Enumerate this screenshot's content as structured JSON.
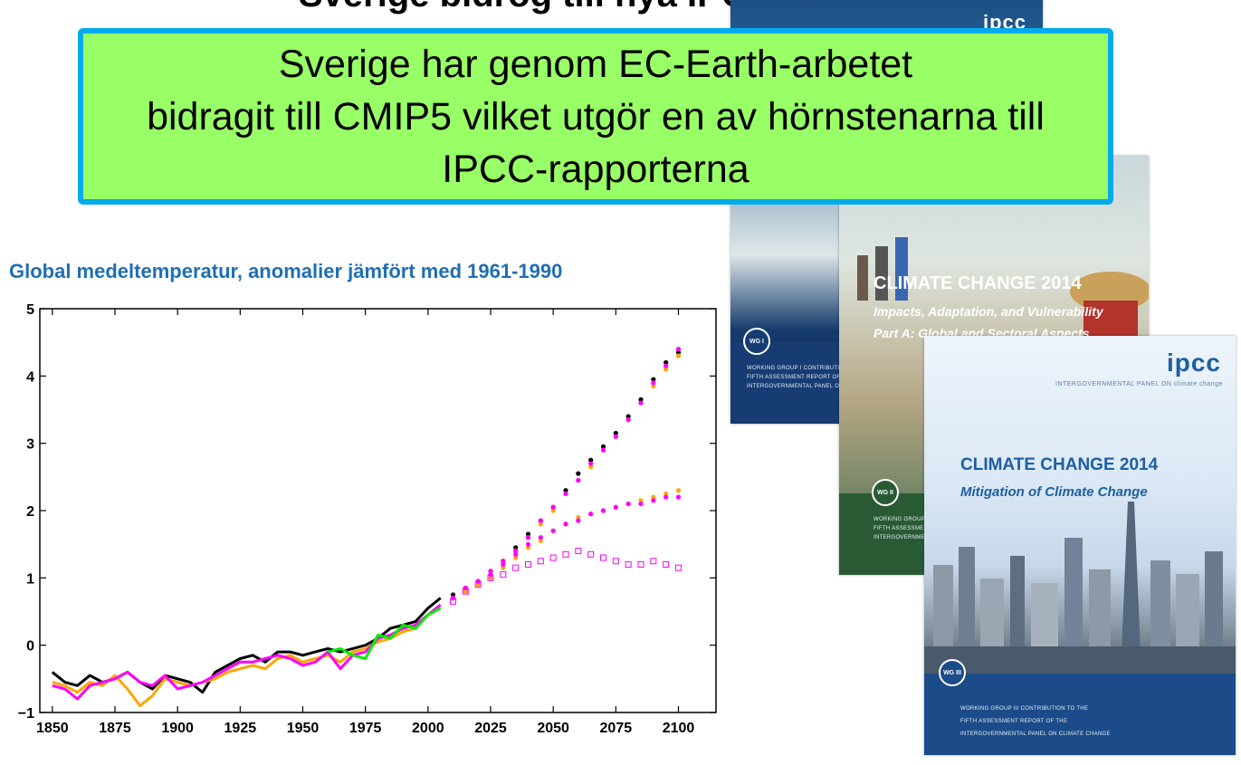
{
  "slide": {
    "top_title": "Sverige bidrog till nya IPCC-rapporten",
    "callout_lines": [
      "Sverige har genom EC-Earth-arbetet",
      "bidragit till CMIP5 vilket utgör en av hörnstenarna till",
      "IPCC-rapporterna"
    ]
  },
  "chart_data": {
    "type": "scatter",
    "title": "Global medeltemperatur, anomalier jämfört med 1961-1990",
    "xlabel": "",
    "ylabel": "",
    "xlim": [
      1845,
      2115
    ],
    "ylim": [
      -1,
      5
    ],
    "xticks": [
      1850,
      1875,
      1900,
      1925,
      1950,
      1975,
      2000,
      2025,
      2050,
      2075,
      2100
    ],
    "yticks": [
      -1,
      0,
      1,
      2,
      3,
      4,
      5
    ],
    "grid": false,
    "legend": "none",
    "series": [
      {
        "kind": "line",
        "color": "#000000",
        "x": [
          1850,
          1855,
          1860,
          1865,
          1870,
          1875,
          1880,
          1885,
          1890,
          1895,
          1900,
          1905,
          1910,
          1915,
          1920,
          1925,
          1930,
          1935,
          1940,
          1945,
          1950,
          1955,
          1960,
          1965,
          1970,
          1975,
          1980,
          1985,
          1990,
          1995,
          2000,
          2005
        ],
        "y": [
          -0.4,
          -0.55,
          -0.6,
          -0.45,
          -0.55,
          -0.5,
          -0.4,
          -0.55,
          -0.65,
          -0.45,
          -0.5,
          -0.55,
          -0.7,
          -0.4,
          -0.3,
          -0.2,
          -0.15,
          -0.25,
          -0.1,
          -0.1,
          -0.15,
          -0.1,
          -0.05,
          -0.1,
          -0.05,
          0.0,
          0.1,
          0.25,
          0.3,
          0.35,
          0.55,
          0.7
        ]
      },
      {
        "kind": "line",
        "color": "#ffa500",
        "x": [
          1850,
          1855,
          1860,
          1865,
          1870,
          1875,
          1880,
          1885,
          1890,
          1895,
          1900,
          1905,
          1910,
          1915,
          1920,
          1925,
          1930,
          1935,
          1940,
          1945,
          1950,
          1955,
          1960,
          1965,
          1970,
          1975,
          1980,
          1985,
          1990,
          1995,
          2000,
          2005
        ],
        "y": [
          -0.55,
          -0.6,
          -0.7,
          -0.55,
          -0.6,
          -0.45,
          -0.65,
          -0.9,
          -0.75,
          -0.5,
          -0.55,
          -0.6,
          -0.55,
          -0.5,
          -0.4,
          -0.35,
          -0.3,
          -0.35,
          -0.2,
          -0.15,
          -0.25,
          -0.2,
          -0.15,
          -0.25,
          -0.1,
          -0.05,
          0.05,
          0.1,
          0.2,
          0.25,
          0.45,
          0.6
        ]
      },
      {
        "kind": "line",
        "color": "#ff00ff",
        "x": [
          1850,
          1855,
          1860,
          1865,
          1870,
          1875,
          1880,
          1885,
          1890,
          1895,
          1900,
          1905,
          1910,
          1915,
          1920,
          1925,
          1930,
          1935,
          1940,
          1945,
          1950,
          1955,
          1960,
          1965,
          1970,
          1975,
          1980,
          1985,
          1990,
          1995,
          2000,
          2005
        ],
        "y": [
          -0.6,
          -0.65,
          -0.8,
          -0.6,
          -0.55,
          -0.5,
          -0.4,
          -0.55,
          -0.6,
          -0.45,
          -0.65,
          -0.6,
          -0.55,
          -0.45,
          -0.35,
          -0.25,
          -0.25,
          -0.2,
          -0.15,
          -0.2,
          -0.3,
          -0.25,
          -0.1,
          -0.35,
          -0.15,
          -0.1,
          0.1,
          0.15,
          0.25,
          0.3,
          0.45,
          0.6
        ]
      },
      {
        "kind": "line",
        "color": "#00ee00",
        "x": [
          1960,
          1965,
          1970,
          1975,
          1980,
          1985,
          1990,
          1995,
          2000,
          2005
        ],
        "y": [
          -0.1,
          -0.05,
          -0.15,
          -0.2,
          0.15,
          0.1,
          0.3,
          0.25,
          0.45,
          0.55
        ]
      },
      {
        "kind": "dots",
        "color": "#000000",
        "x": [
          2010,
          2015,
          2020,
          2025,
          2030,
          2035,
          2040,
          2045,
          2050,
          2055,
          2060,
          2065,
          2070,
          2075,
          2080,
          2085,
          2090,
          2095,
          2100
        ],
        "y": [
          0.75,
          0.85,
          0.95,
          1.1,
          1.25,
          1.45,
          1.65,
          1.85,
          2.05,
          2.3,
          2.55,
          2.75,
          2.95,
          3.15,
          3.4,
          3.65,
          3.95,
          4.2,
          4.35
        ]
      },
      {
        "kind": "dots",
        "color": "#ffa500",
        "x": [
          2010,
          2015,
          2020,
          2025,
          2030,
          2035,
          2040,
          2045,
          2050,
          2055,
          2060,
          2065,
          2070,
          2075,
          2080,
          2085,
          2090,
          2095,
          2100
        ],
        "y": [
          0.7,
          0.8,
          0.95,
          1.05,
          1.25,
          1.4,
          1.6,
          1.8,
          2.0,
          2.25,
          2.45,
          2.65,
          2.9,
          3.1,
          3.35,
          3.6,
          3.85,
          4.1,
          4.3
        ]
      },
      {
        "kind": "dots",
        "color": "#ff00ff",
        "x": [
          2010,
          2015,
          2020,
          2025,
          2030,
          2035,
          2040,
          2045,
          2050,
          2055,
          2060,
          2065,
          2070,
          2075,
          2080,
          2085,
          2090,
          2095,
          2100
        ],
        "y": [
          0.7,
          0.85,
          0.95,
          1.1,
          1.25,
          1.4,
          1.6,
          1.85,
          2.05,
          2.25,
          2.45,
          2.7,
          2.9,
          3.1,
          3.35,
          3.6,
          3.9,
          4.15,
          4.4
        ]
      },
      {
        "kind": "dots",
        "color": "#ffa500",
        "x": [
          2010,
          2015,
          2020,
          2025,
          2030,
          2035,
          2040,
          2045,
          2050,
          2055,
          2060,
          2065,
          2070,
          2075,
          2080,
          2085,
          2090,
          2095,
          2100
        ],
        "y": [
          0.7,
          0.8,
          0.9,
          1.0,
          1.15,
          1.3,
          1.45,
          1.55,
          1.7,
          1.8,
          1.9,
          1.95,
          2.0,
          2.05,
          2.1,
          2.15,
          2.2,
          2.25,
          2.3
        ]
      },
      {
        "kind": "dots",
        "color": "#ff00ff",
        "x": [
          2010,
          2015,
          2020,
          2025,
          2030,
          2035,
          2040,
          2045,
          2050,
          2055,
          2060,
          2065,
          2070,
          2075,
          2080,
          2085,
          2090,
          2095,
          2100
        ],
        "y": [
          0.7,
          0.85,
          0.95,
          1.05,
          1.2,
          1.35,
          1.5,
          1.6,
          1.7,
          1.8,
          1.85,
          1.95,
          2.0,
          2.05,
          2.1,
          2.1,
          2.15,
          2.2,
          2.2
        ]
      },
      {
        "kind": "squares",
        "color": "#ff00ff",
        "x": [
          2010,
          2015,
          2020,
          2025,
          2030,
          2035,
          2040,
          2045,
          2050,
          2055,
          2060,
          2065,
          2070,
          2075,
          2080,
          2085,
          2090,
          2095,
          2100
        ],
        "y": [
          0.65,
          0.8,
          0.9,
          1.0,
          1.05,
          1.15,
          1.2,
          1.25,
          1.3,
          1.35,
          1.4,
          1.35,
          1.3,
          1.25,
          1.2,
          1.2,
          1.25,
          1.2,
          1.15
        ]
      }
    ]
  },
  "covers": {
    "wg1": {
      "tag": "ipcc",
      "badge": "WG I",
      "band_lines": [
        "WORKING GROUP I CONTRIBUTION TO THE",
        "FIFTH ASSESSMENT REPORT OF THE",
        "INTERGOVERNMENTAL PANEL ON CLIMATE CHANGE"
      ]
    },
    "wg2": {
      "title": "CLIMATE CHANGE 2014",
      "subtitle1": "Impacts, Adaptation, and Vulnerability",
      "subtitle2": "Part A: Global and Sectoral Aspects",
      "badge": "WG II",
      "band_lines": [
        "WORKING GROUP II CONTRIBUTION TO THE",
        "FIFTH ASSESSMENT REPORT OF THE",
        "INTERGOVERNMENTAL PANEL ON CLIMATE CHANGE"
      ]
    },
    "wg3": {
      "logo": "ipcc",
      "logo_tag": "INTERGOVERNMENTAL PANEL ON climate change",
      "title": "CLIMATE CHANGE 2014",
      "subtitle": "Mitigation of Climate Change",
      "badge": "WG III",
      "band_lines": [
        "WORKING GROUP III CONTRIBUTION TO THE",
        "FIFTH ASSESSMENT REPORT OF THE",
        "INTERGOVERNMENTAL PANEL ON CLIMATE CHANGE"
      ]
    }
  }
}
